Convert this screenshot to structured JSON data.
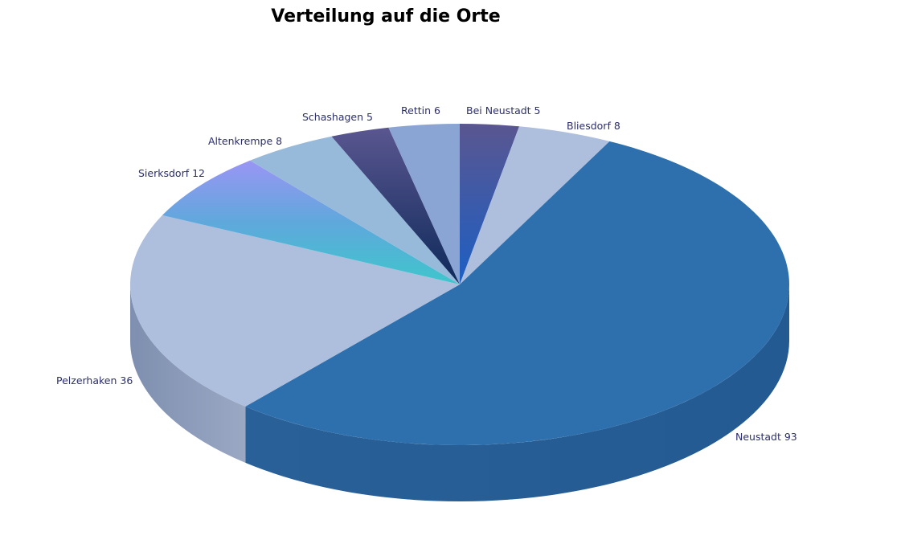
{
  "chart_data": {
    "type": "pie",
    "title": "Verteilung auf die Orte",
    "categories": [
      "Neustadt",
      "Pelzerhaken",
      "Sierksdorf",
      "Altenkrempe",
      "Schashagen",
      "Rettin",
      "Bei Neustadt",
      "Bliesdorf"
    ],
    "values": [
      93,
      36,
      12,
      8,
      5,
      6,
      5,
      8
    ],
    "labels": [
      "Neustadt  93",
      "Pelzerhaken 36",
      "Sierksdorf 12",
      "Altenkrempe  8",
      "Schashagen  5",
      "Rettin  6",
      "Bei Neustadt 5",
      "Bliesdorf 8"
    ],
    "colors": [
      "#2e70ae",
      "#aebedd",
      "#5aa6dc",
      "#97bada",
      "#3b3f73",
      "#8aa5d3",
      "#3d62a6",
      "#aebedd"
    ],
    "three_d": true,
    "legend": "none"
  }
}
